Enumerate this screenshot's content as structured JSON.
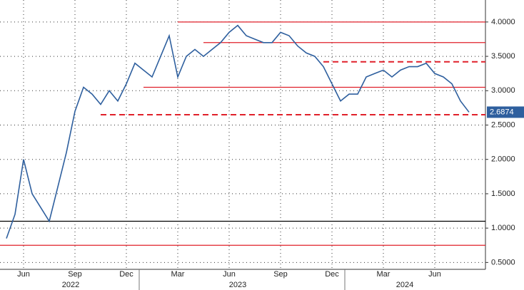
{
  "chart_data": {
    "type": "line",
    "categories": [
      null,
      null,
      "Jun",
      null,
      null,
      null,
      null,
      null,
      "Sep",
      null,
      null,
      null,
      null,
      null,
      "Dec",
      null,
      null,
      null,
      null,
      null,
      "Mar",
      null,
      null,
      null,
      null,
      null,
      "Jun",
      null,
      null,
      null,
      null,
      null,
      "Sep",
      null,
      null,
      null,
      null,
      null,
      "Dec",
      null,
      null,
      null,
      null,
      null,
      "Mar",
      null,
      null,
      null,
      null,
      null,
      "Jun",
      null,
      null,
      null,
      null
    ],
    "series": [
      {
        "color": "#2e5f9e",
        "values": [
          0.85,
          1.2,
          2.0,
          1.5,
          1.3,
          1.1,
          1.6,
          2.1,
          2.7,
          3.05,
          2.95,
          2.8,
          3.0,
          2.85,
          3.1,
          3.4,
          3.3,
          3.2,
          3.5,
          3.8,
          3.2,
          3.5,
          3.6,
          3.5,
          3.6,
          3.7,
          3.85,
          3.95,
          3.8,
          3.75,
          3.7,
          3.7,
          3.85,
          3.8,
          3.65,
          3.55,
          3.5,
          3.35,
          3.1,
          2.85,
          2.95,
          2.95,
          3.2,
          3.25,
          3.3,
          3.2,
          3.3,
          3.35,
          3.35,
          3.4,
          3.25,
          3.2,
          3.1,
          2.85,
          2.6874
        ]
      }
    ],
    "years": [
      {
        "label": "2022",
        "from": 0,
        "to": 15
      },
      {
        "label": "2023",
        "from": 15,
        "to": 39
      },
      {
        "label": "2024",
        "from": 39,
        "to": 54
      }
    ],
    "reference_lines": [
      {
        "value": 4.0,
        "color": "#e0202a",
        "style": "solid",
        "from": 20
      },
      {
        "value": 3.7,
        "color": "#e0202a",
        "style": "solid",
        "from": 23
      },
      {
        "value": 3.42,
        "color": "#e0202a",
        "style": "dashed",
        "from": 37
      },
      {
        "value": 3.05,
        "color": "#e0202a",
        "style": "solid",
        "from": 16
      },
      {
        "value": 2.65,
        "color": "#e0202a",
        "style": "dashed",
        "from": 11
      },
      {
        "value": 1.1,
        "color": "#000000",
        "style": "solid",
        "from": 0
      },
      {
        "value": 0.75,
        "color": "#e0202a",
        "style": "solid",
        "from": 0
      }
    ],
    "ylim": [
      0.4,
      4.32
    ],
    "yticks": [
      {
        "value": 0.5,
        "label": "0.5000"
      },
      {
        "value": 1.0,
        "label": "1.0000"
      },
      {
        "value": 1.5,
        "label": "1.5000"
      },
      {
        "value": 2.0,
        "label": "2.0000"
      },
      {
        "value": 2.5,
        "label": "2.5000"
      },
      {
        "value": 3.0,
        "label": "3.0000"
      },
      {
        "value": 3.5,
        "label": "3.5000"
      },
      {
        "value": 4.0,
        "label": "4.0000"
      }
    ],
    "grid": true
  }
}
